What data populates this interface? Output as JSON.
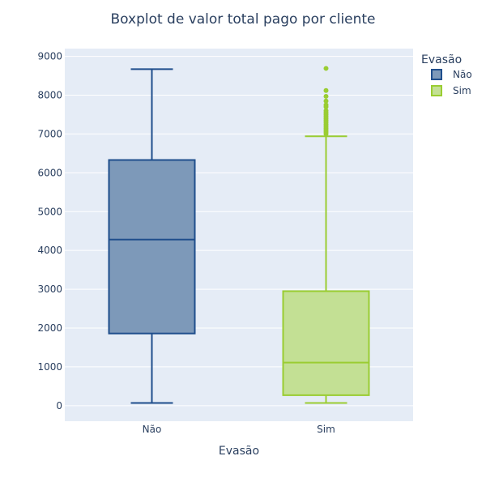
{
  "chart_data": {
    "type": "box",
    "title": "Boxplot de valor total pago por cliente",
    "xlabel": "Evasão",
    "ylabel": "",
    "ylim": [
      -400,
      9200
    ],
    "yticks": [
      0,
      1000,
      2000,
      3000,
      4000,
      5000,
      6000,
      7000,
      8000,
      9000
    ],
    "grid": true,
    "legend": {
      "title": "Evasão",
      "position": "top-right"
    },
    "categories": [
      "Não",
      "Sim"
    ],
    "series": [
      {
        "name": "Não",
        "color": "#1f4e8c",
        "fill": "#7d99b9",
        "whisker_low": 70,
        "q1": 1860,
        "median": 4280,
        "q3": 6330,
        "whisker_high": 8670,
        "outliers": []
      },
      {
        "name": "Sim",
        "color": "#9acd32",
        "fill": "#c3e094",
        "whisker_low": 70,
        "q1": 270,
        "median": 1110,
        "q3": 2950,
        "whisker_high": 6940,
        "outliers": [
          7000,
          7050,
          7100,
          7150,
          7200,
          7250,
          7300,
          7350,
          7400,
          7450,
          7500,
          7550,
          7600,
          7700,
          7750,
          7850,
          7970,
          8120,
          8690
        ]
      }
    ]
  }
}
